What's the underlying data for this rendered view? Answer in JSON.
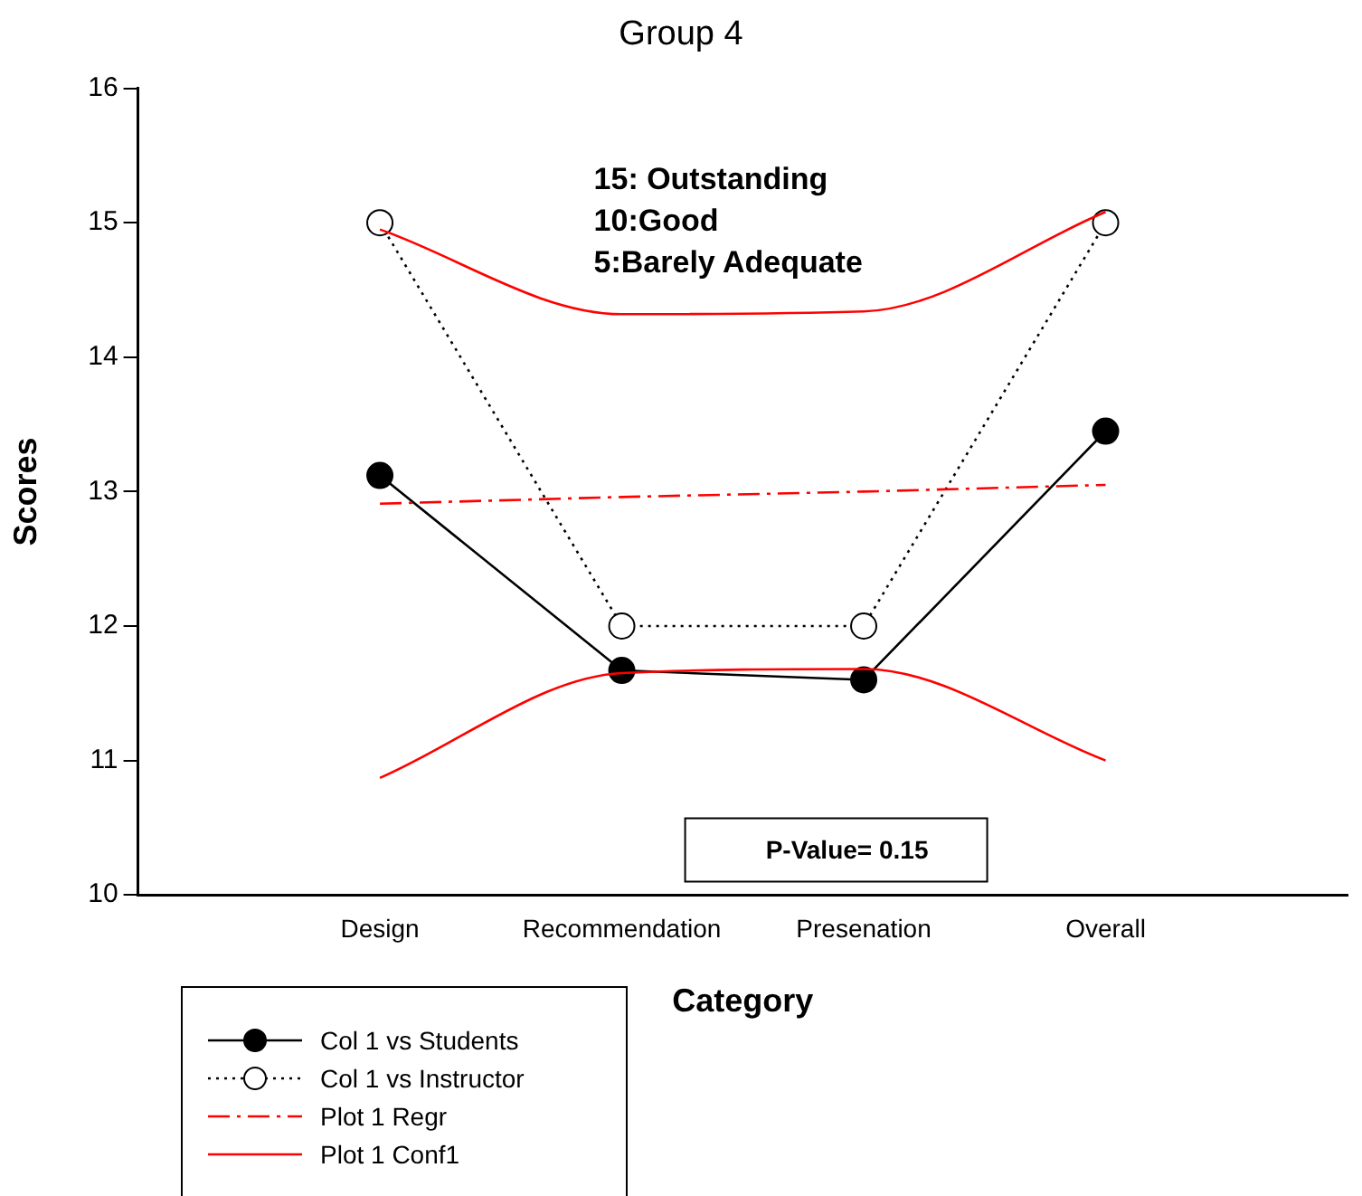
{
  "chart_data": {
    "type": "line",
    "title": "Group 4",
    "xlabel": "Category",
    "ylabel": "Scores",
    "categories": [
      "Design",
      "Recommendation",
      "Presenation",
      "Overall"
    ],
    "series": [
      {
        "name": "Col 1 vs Students",
        "color": "#000000",
        "values": [
          13.12,
          11.67,
          11.6,
          13.45
        ],
        "marker": "circle",
        "line_style": "solid"
      },
      {
        "name": "Col 1 vs Instructor",
        "color": "#000000",
        "values": [
          15,
          12,
          12,
          15
        ],
        "marker": "circle",
        "line_style": "dotted"
      },
      {
        "name": "Plot 1 Regr",
        "color": "#ff0000",
        "values": [
          12.91,
          12.96,
          13.0,
          13.05
        ],
        "marker": "none",
        "line_style": "dashdot"
      },
      {
        "name": "Plot 1 Conf1",
        "color": "#ff0000",
        "values": [
          14.95,
          14.32,
          14.34,
          15.08
        ],
        "marker": "none",
        "line_style": "solid"
      },
      {
        "color": "#ff0000",
        "values": [
          10.87,
          11.65,
          11.68,
          11.0
        ],
        "marker": "none",
        "line_style": "solid"
      }
    ],
    "ylim": [
      10,
      16
    ],
    "yticks": [
      10,
      11,
      12,
      13,
      14,
      15,
      16
    ],
    "grid": false,
    "legend": "bottom left",
    "annotations": [
      "15: Outstanding",
      "10:Good",
      "5:Barely Adequate",
      "P-Value= 0.15"
    ]
  }
}
